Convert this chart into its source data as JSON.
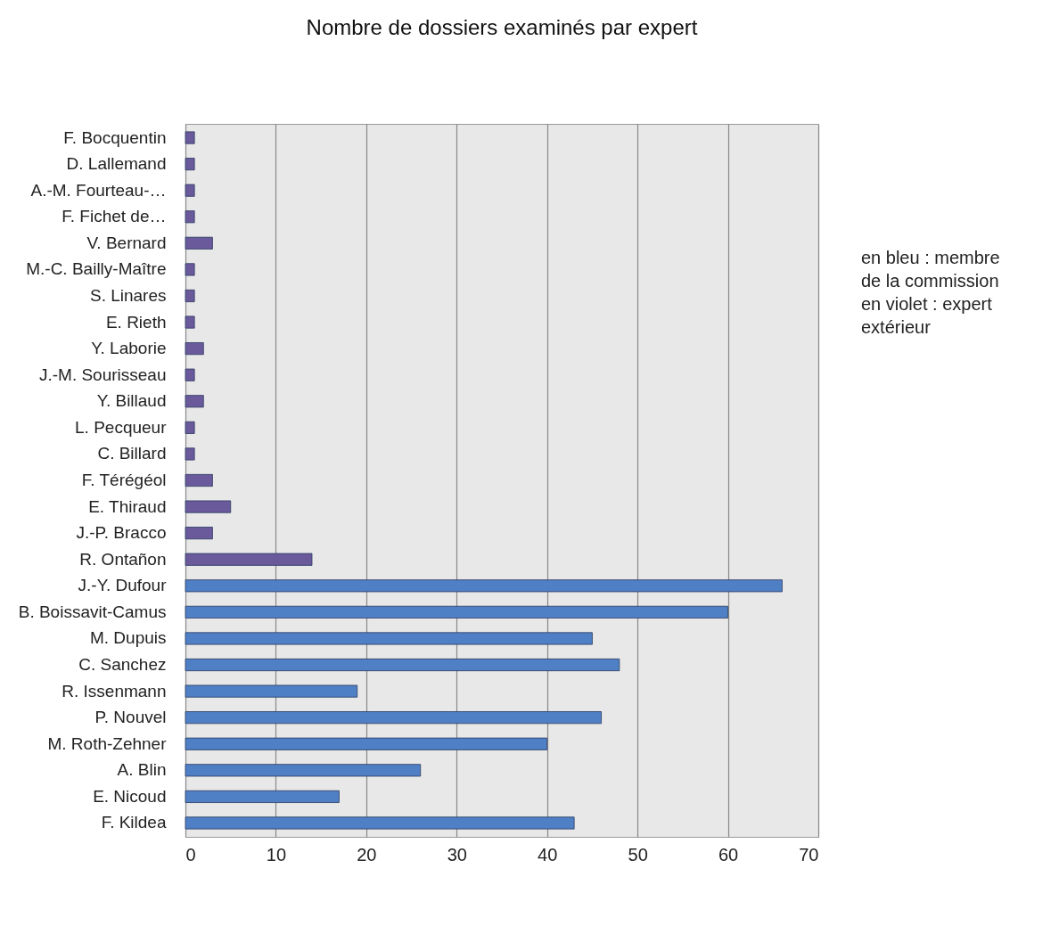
{
  "chart_data": {
    "type": "bar",
    "orientation": "horizontal",
    "title": "Nombre de dossiers examinés par expert",
    "categories": [
      "F. Bocquentin",
      "D. Lallemand",
      "A.-M. Fourteau-…",
      "F. Fichet de…",
      "V. Bernard",
      "M.-C. Bailly-Maître",
      "S. Linares",
      "E. Rieth",
      "Y. Laborie",
      "J.-M. Sourisseau",
      "Y. Billaud",
      "L. Pecqueur",
      "C. Billard",
      "F. Térégéol",
      "E. Thiraud",
      "J.-P. Bracco",
      "R. Ontañon",
      "J.-Y. Dufour",
      "B. Boissavit-Camus",
      "M. Dupuis",
      "C. Sanchez",
      "R. Issenmann",
      "P. Nouvel",
      "M. Roth-Zehner",
      "A. Blin",
      "E. Nicoud",
      "F. Kildea"
    ],
    "values": [
      1,
      1,
      1,
      1,
      3,
      1,
      1,
      1,
      2,
      1,
      2,
      1,
      1,
      3,
      5,
      3,
      14,
      66,
      60,
      45,
      48,
      19,
      46,
      40,
      26,
      17,
      43
    ],
    "colors": [
      "#6a5a9c",
      "#6a5a9c",
      "#6a5a9c",
      "#6a5a9c",
      "#6a5a9c",
      "#6a5a9c",
      "#6a5a9c",
      "#6a5a9c",
      "#6a5a9c",
      "#6a5a9c",
      "#6a5a9c",
      "#6a5a9c",
      "#6a5a9c",
      "#6a5a9c",
      "#6a5a9c",
      "#6a5a9c",
      "#6a5a9c",
      "#4f7fc4",
      "#4f7fc4",
      "#4f7fc4",
      "#4f7fc4",
      "#4f7fc4",
      "#4f7fc4",
      "#4f7fc4",
      "#4f7fc4",
      "#4f7fc4",
      "#4f7fc4"
    ],
    "xlim": [
      0,
      70
    ],
    "xticks": [
      0,
      10,
      20,
      30,
      40,
      50,
      60,
      70
    ],
    "grid": "x",
    "annotations": [
      "en bleu : membre de la commission",
      "en violet : expert extérieur"
    ]
  }
}
